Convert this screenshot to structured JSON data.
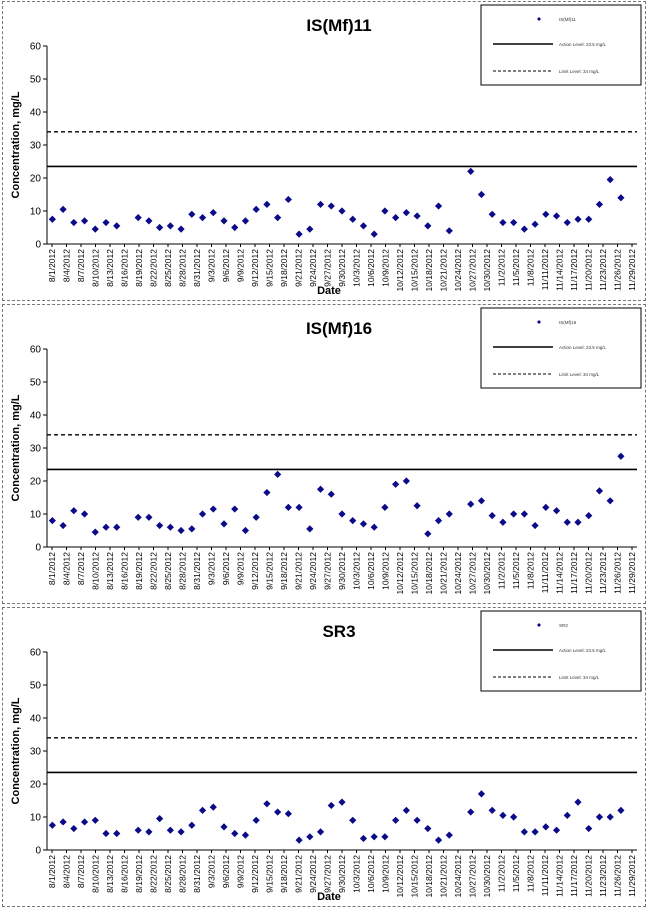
{
  "chart_data": [
    {
      "type": "scatter",
      "title": "IS(Mf)11",
      "xlabel": "Date",
      "ylabel": "Concentration, mg/L",
      "ylim": [
        0,
        60
      ],
      "yticks": [
        "0",
        "10",
        "20",
        "30",
        "40",
        "50",
        "60"
      ],
      "xticks": [
        "8/1/2012",
        "8/4/2012",
        "8/7/2012",
        "8/10/2012",
        "8/13/2012",
        "8/16/2012",
        "8/19/2012",
        "8/22/2012",
        "8/25/2012",
        "8/28/2012",
        "8/31/2012",
        "9/3/2012",
        "9/6/2012",
        "9/9/2012",
        "9/12/2012",
        "9/15/2012",
        "9/18/2012",
        "9/21/2012",
        "9/24/2012",
        "9/27/2012",
        "9/30/2012",
        "10/3/2012",
        "10/6/2012",
        "10/9/2012",
        "10/12/2012",
        "10/15/2012",
        "10/18/2012",
        "10/21/2012",
        "10/24/2012",
        "10/27/2012",
        "10/30/2012",
        "11/2/2012",
        "11/5/2012",
        "11/8/2012",
        "11/11/2012",
        "11/14/2012",
        "11/17/2012",
        "11/20/2012",
        "11/23/2012",
        "11/26/2012",
        "11/29/2012"
      ],
      "action_level": 23.5,
      "limit_level": 34,
      "legend": [
        "IS(Mf)11",
        "Action Level: 23.5 mg/L",
        "Limit Level: 34 mg/L"
      ],
      "grid": false,
      "legend_position": "top-right",
      "marker_color": "#0b0b8a",
      "points": [
        [
          0,
          7.5
        ],
        [
          1,
          10.5
        ],
        [
          2,
          6.5
        ],
        [
          3,
          7
        ],
        [
          4,
          4.5
        ],
        [
          5,
          6.5
        ],
        [
          6,
          5.5
        ],
        [
          8,
          8
        ],
        [
          9,
          7
        ],
        [
          10,
          5
        ],
        [
          11,
          5.5
        ],
        [
          12,
          4.5
        ],
        [
          13,
          9
        ],
        [
          14,
          8
        ],
        [
          15,
          9.5
        ],
        [
          16,
          7
        ],
        [
          17,
          5
        ],
        [
          18,
          7
        ],
        [
          19,
          10.5
        ],
        [
          20,
          12
        ],
        [
          21,
          8
        ],
        [
          22,
          13.5
        ],
        [
          23,
          3
        ],
        [
          24,
          4.5
        ],
        [
          25,
          12
        ],
        [
          26,
          11.5
        ],
        [
          27,
          10
        ],
        [
          28,
          7.5
        ],
        [
          29,
          5.5
        ],
        [
          30,
          3
        ],
        [
          31,
          10
        ],
        [
          32,
          8
        ],
        [
          33,
          9.5
        ],
        [
          34,
          8.5
        ],
        [
          35,
          5.5
        ],
        [
          36,
          11.5
        ],
        [
          37,
          4
        ],
        [
          39,
          22
        ],
        [
          40,
          15
        ],
        [
          41,
          9
        ],
        [
          42,
          6.5
        ],
        [
          43,
          6.5
        ],
        [
          44,
          4.5
        ],
        [
          45,
          6
        ],
        [
          46,
          9
        ],
        [
          47,
          8.5
        ],
        [
          48,
          6.5
        ],
        [
          49,
          7.5
        ],
        [
          50,
          7.5
        ],
        [
          51,
          12
        ],
        [
          52,
          19.5
        ],
        [
          53,
          14
        ]
      ]
    },
    {
      "type": "scatter",
      "title": "IS(Mf)16",
      "xlabel": "",
      "ylabel": "Concentration, mg/L",
      "ylim": [
        0,
        60
      ],
      "yticks": [
        "0",
        "10",
        "20",
        "30",
        "40",
        "50",
        "60"
      ],
      "xticks": [
        "8/1/2012",
        "8/4/2012",
        "8/7/2012",
        "8/10/2012",
        "8/13/2012",
        "8/16/2012",
        "8/19/2012",
        "8/22/2012",
        "8/25/2012",
        "8/28/2012",
        "8/31/2012",
        "9/3/2012",
        "9/6/2012",
        "9/9/2012",
        "9/12/2012",
        "9/15/2012",
        "9/18/2012",
        "9/21/2012",
        "9/24/2012",
        "9/27/2012",
        "9/30/2012",
        "10/3/2012",
        "10/6/2012",
        "10/9/2012",
        "10/12/2012",
        "10/15/2012",
        "10/18/2012",
        "10/21/2012",
        "10/24/2012",
        "10/27/2012",
        "10/30/2012",
        "11/2/2012",
        "11/5/2012",
        "11/8/2012",
        "11/11/2012",
        "11/14/2012",
        "11/17/2012",
        "11/20/2012",
        "11/23/2012",
        "11/26/2012",
        "11/29/2012"
      ],
      "action_level": 23.5,
      "limit_level": 34,
      "legend": [
        "IS(Mf)16",
        "Action Level: 23.5 mg/L",
        "Limit Level: 34 mg/L"
      ],
      "grid": false,
      "legend_position": "top-right",
      "marker_color": "#0b0b8a",
      "points": [
        [
          0,
          8
        ],
        [
          1,
          6.5
        ],
        [
          2,
          11
        ],
        [
          3,
          10
        ],
        [
          4,
          4.5
        ],
        [
          5,
          6
        ],
        [
          6,
          6
        ],
        [
          8,
          9
        ],
        [
          9,
          9
        ],
        [
          10,
          6.5
        ],
        [
          11,
          6
        ],
        [
          12,
          5
        ],
        [
          13,
          5.5
        ],
        [
          14,
          10
        ],
        [
          15,
          11.5
        ],
        [
          16,
          7
        ],
        [
          17,
          11.5
        ],
        [
          18,
          5
        ],
        [
          19,
          9
        ],
        [
          20,
          16.5
        ],
        [
          21,
          22
        ],
        [
          22,
          12
        ],
        [
          23,
          12
        ],
        [
          24,
          5.5
        ],
        [
          25,
          17.5
        ],
        [
          26,
          16
        ],
        [
          27,
          10
        ],
        [
          28,
          8
        ],
        [
          29,
          7
        ],
        [
          30,
          6
        ],
        [
          31,
          12
        ],
        [
          32,
          19
        ],
        [
          33,
          20
        ],
        [
          34,
          12.5
        ],
        [
          35,
          4
        ],
        [
          36,
          8
        ],
        [
          37,
          10
        ],
        [
          39,
          13
        ],
        [
          40,
          14
        ],
        [
          41,
          9.5
        ],
        [
          42,
          7.5
        ],
        [
          43,
          10
        ],
        [
          44,
          10
        ],
        [
          45,
          6.5
        ],
        [
          46,
          12
        ],
        [
          47,
          11
        ],
        [
          48,
          7.5
        ],
        [
          49,
          7.5
        ],
        [
          50,
          9.5
        ],
        [
          51,
          17
        ],
        [
          52,
          14
        ],
        [
          53,
          27.5
        ]
      ]
    },
    {
      "type": "scatter",
      "title": "SR3",
      "xlabel": "Date",
      "ylabel": "Concentration, mg/L",
      "ylim": [
        0,
        60
      ],
      "yticks": [
        "0",
        "10",
        "20",
        "30",
        "40",
        "50",
        "60"
      ],
      "xticks": [
        "8/1/2012",
        "8/4/2012",
        "8/7/2012",
        "8/10/2012",
        "8/13/2012",
        "8/16/2012",
        "8/19/2012",
        "8/22/2012",
        "8/25/2012",
        "8/28/2012",
        "8/31/2012",
        "9/3/2012",
        "9/6/2012",
        "9/9/2012",
        "9/12/2012",
        "9/15/2012",
        "9/18/2012",
        "9/21/2012",
        "9/24/2012",
        "9/27/2012",
        "9/30/2012",
        "10/3/2012",
        "10/6/2012",
        "10/9/2012",
        "10/12/2012",
        "10/15/2012",
        "10/18/2012",
        "10/21/2012",
        "10/24/2012",
        "10/27/2012",
        "10/30/2012",
        "11/2/2012",
        "11/5/2012",
        "11/8/2012",
        "11/11/2012",
        "11/14/2012",
        "11/17/2012",
        "11/20/2012",
        "11/23/2012",
        "11/26/2012",
        "11/29/2012"
      ],
      "action_level": 23.5,
      "limit_level": 34,
      "legend": [
        "SR3",
        "Action Level: 23.5 mg/L",
        "Limit Level: 34 mg/L"
      ],
      "grid": false,
      "legend_position": "top-right",
      "marker_color": "#0b0b8a",
      "points": [
        [
          0,
          7.5
        ],
        [
          1,
          8.5
        ],
        [
          2,
          6.5
        ],
        [
          3,
          8.5
        ],
        [
          4,
          9
        ],
        [
          5,
          5
        ],
        [
          6,
          5
        ],
        [
          8,
          6
        ],
        [
          9,
          5.5
        ],
        [
          10,
          9.5
        ],
        [
          11,
          6
        ],
        [
          12,
          5.5
        ],
        [
          13,
          7.5
        ],
        [
          14,
          12
        ],
        [
          15,
          13
        ],
        [
          16,
          7
        ],
        [
          17,
          5
        ],
        [
          18,
          4.5
        ],
        [
          19,
          9
        ],
        [
          20,
          14
        ],
        [
          21,
          11.5
        ],
        [
          22,
          11
        ],
        [
          23,
          3
        ],
        [
          24,
          4
        ],
        [
          25,
          5.5
        ],
        [
          26,
          13.5
        ],
        [
          27,
          14.5
        ],
        [
          28,
          9
        ],
        [
          29,
          3.5
        ],
        [
          30,
          4
        ],
        [
          31,
          4
        ],
        [
          32,
          9
        ],
        [
          33,
          12
        ],
        [
          34,
          9
        ],
        [
          35,
          6.5
        ],
        [
          36,
          3
        ],
        [
          37,
          4.5
        ],
        [
          39,
          11.5
        ],
        [
          40,
          17
        ],
        [
          41,
          12
        ],
        [
          42,
          10.5
        ],
        [
          43,
          10
        ],
        [
          44,
          5.5
        ],
        [
          45,
          5.5
        ],
        [
          46,
          7
        ],
        [
          47,
          6
        ],
        [
          48,
          10.5
        ],
        [
          49,
          14.5
        ],
        [
          50,
          6.5
        ],
        [
          51,
          10
        ],
        [
          52,
          10
        ],
        [
          53,
          12
        ]
      ]
    }
  ]
}
